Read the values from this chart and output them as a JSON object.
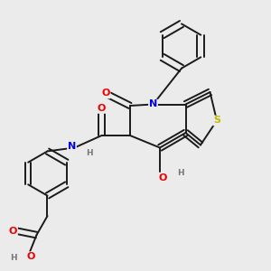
{
  "background_color": "#ebebeb",
  "bond_color": "#1a1a1a",
  "atom_colors": {
    "N": "#0000ee",
    "O": "#ee0000",
    "S": "#bbbb00",
    "H": "#777777",
    "C": "#1a1a1a"
  },
  "figsize": [
    3.0,
    3.0
  ],
  "dpi": 100
}
